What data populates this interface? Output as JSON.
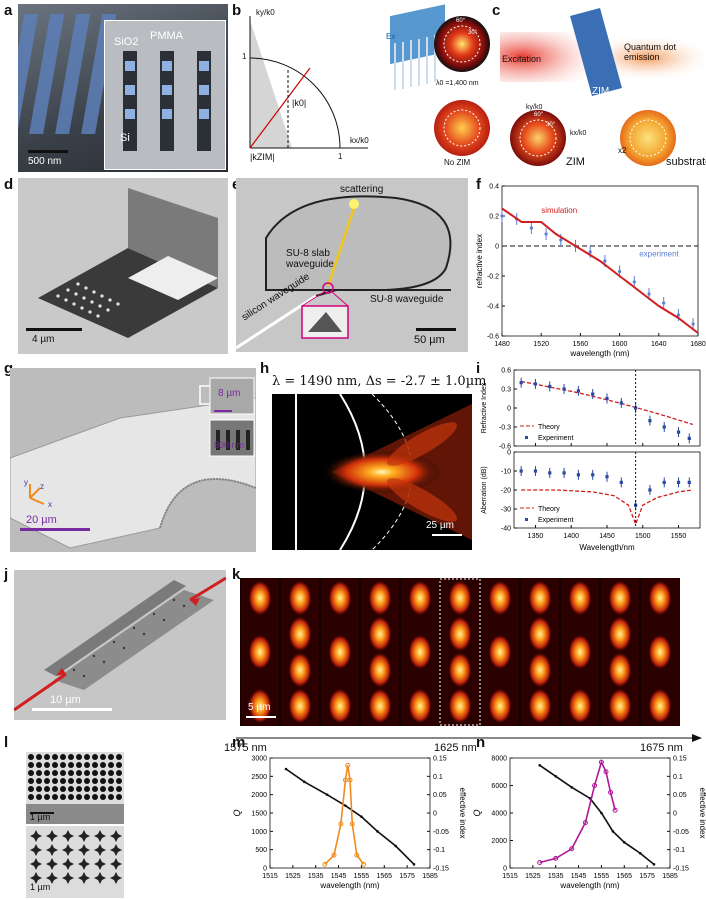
{
  "labels": {
    "a": "a",
    "b": "b",
    "c": "c",
    "d": "d",
    "e": "e",
    "f": "f",
    "g": "g",
    "h": "h",
    "i": "i",
    "j": "j",
    "k": "k",
    "l": "l",
    "m": "m",
    "n": "n"
  },
  "panel_a": {
    "sio2": "SiO2",
    "pmma": "PMMA",
    "si": "Si",
    "scale": "500 nm"
  },
  "panel_b": {
    "ky": "ky/k0",
    "kx": "kx/k0",
    "k0": "|k0|",
    "kzim": "|kZIM|",
    "one_y": "1",
    "one_x": "1",
    "lambda": "λ0 =1,400 nm",
    "no_zim": "No ZIM",
    "ex": "Ex",
    "deg60": "60°",
    "deg30": "30°"
  },
  "panel_c": {
    "excitation": "Excitation",
    "qd": "Quantum dot emission",
    "zim": "ZIM",
    "zim_label": "ZIM",
    "substrate": "substrate",
    "x2": "x2",
    "ky": "ky/k0",
    "kx": "kx/k0",
    "deg60": "60°",
    "deg30": "30°"
  },
  "panel_d": {
    "scale": "4 µm"
  },
  "panel_e": {
    "scattering": "scattering",
    "slab": "SU-8 slab waveguide",
    "su8": "SU-8 waveguide",
    "silicon": "silicon waveguide",
    "scale": "50 µm"
  },
  "panel_f": {
    "xlabel": "wavelength (nm)",
    "ylabel": "refractive index",
    "simulation": "simulation",
    "experiment": "experiment"
  },
  "panel_g": {
    "s8": "8 µm",
    "s800": "800 nm",
    "s20": "20 µm",
    "y": "y",
    "z": "z",
    "x": "x"
  },
  "panel_h": {
    "title": "λ = 1490 nm, Δs = -2.7 ± 1.0µm",
    "scale": "25 µm"
  },
  "panel_i": {
    "xlabel": "Wavelength/nm",
    "ylabel_top": "Refractive Index",
    "ylabel_bot": "Aberration (dB)",
    "theory": "Theory",
    "experiment": "Experiment"
  },
  "panel_j": {
    "scale": "10 µm"
  },
  "panel_k": {
    "scale": "5 µm",
    "w1": "1575 nm",
    "w2": "1625 nm",
    "w3": "1675 nm"
  },
  "panel_l": {
    "scale1": "1 µm",
    "scale2": "1 µm"
  },
  "panel_m": {
    "xlabel": "wavelength (nm)",
    "ylabel": "Q",
    "ylabel2": "effective index"
  },
  "panel_n": {
    "xlabel": "wavelength (nm)",
    "ylabel": "Q",
    "ylabel2": "effective index"
  },
  "chart_data": [
    {
      "id": "f",
      "type": "line",
      "title": "",
      "xlabel": "wavelength (nm)",
      "ylabel": "refractive index",
      "xlim": [
        1480,
        1680
      ],
      "ylim": [
        -0.6,
        0.4
      ],
      "xticks": [
        1480,
        1520,
        1560,
        1600,
        1640,
        1680
      ],
      "yticks": [
        0.4,
        0.2,
        0,
        -0.2,
        -0.4,
        -0.6
      ],
      "series": [
        {
          "name": "simulation",
          "x": [
            1480,
            1500,
            1520,
            1535,
            1550,
            1565,
            1580,
            1600,
            1620,
            1640,
            1660,
            1680
          ],
          "values": [
            0.25,
            0.16,
            0.16,
            0.08,
            0.02,
            -0.04,
            -0.1,
            -0.2,
            -0.3,
            -0.4,
            -0.48,
            -0.58
          ]
        },
        {
          "name": "experiment",
          "x": [
            1480,
            1495,
            1510,
            1525,
            1540,
            1555,
            1570,
            1585,
            1600,
            1615,
            1630,
            1645,
            1660,
            1675
          ],
          "values": [
            0.2,
            0.18,
            0.12,
            0.08,
            0.04,
            0.0,
            -0.04,
            -0.1,
            -0.17,
            -0.24,
            -0.32,
            -0.38,
            -0.46,
            -0.52
          ]
        }
      ]
    },
    {
      "id": "i-top",
      "type": "line",
      "xlabel": "Wavelength/nm",
      "ylabel": "Refractive Index",
      "xlim": [
        1320,
        1580
      ],
      "ylim": [
        -0.6,
        0.6
      ],
      "xticks": [
        1350,
        1400,
        1450,
        1500,
        1550
      ],
      "yticks": [
        0.6,
        0.3,
        0,
        -0.3,
        -0.6
      ],
      "series": [
        {
          "name": "Theory",
          "x": [
            1330,
            1370,
            1410,
            1450,
            1490,
            1530,
            1570
          ],
          "values": [
            0.42,
            0.33,
            0.24,
            0.13,
            0.01,
            -0.12,
            -0.26
          ]
        },
        {
          "name": "Experiment",
          "x": [
            1330,
            1350,
            1370,
            1390,
            1410,
            1430,
            1450,
            1470,
            1490,
            1510,
            1530,
            1550,
            1565
          ],
          "values": [
            0.4,
            0.38,
            0.34,
            0.3,
            0.27,
            0.22,
            0.15,
            0.08,
            0.0,
            -0.2,
            -0.3,
            -0.38,
            -0.48
          ]
        }
      ]
    },
    {
      "id": "i-bot",
      "type": "line",
      "xlabel": "Wavelength/nm",
      "ylabel": "Aberration (dB)",
      "xlim": [
        1320,
        1580
      ],
      "ylim": [
        -40,
        0
      ],
      "xticks": [
        1350,
        1400,
        1450,
        1500,
        1550
      ],
      "yticks": [
        0,
        -10,
        -20,
        -30,
        -40
      ],
      "series": [
        {
          "name": "Theory",
          "x": [
            1330,
            1380,
            1430,
            1460,
            1480,
            1490,
            1500,
            1520,
            1550,
            1570
          ],
          "values": [
            -20,
            -20,
            -21,
            -23,
            -28,
            -38,
            -28,
            -24,
            -21,
            -20
          ]
        },
        {
          "name": "Experiment",
          "x": [
            1330,
            1350,
            1370,
            1390,
            1410,
            1430,
            1450,
            1470,
            1490,
            1510,
            1530,
            1550,
            1565
          ],
          "values": [
            -10,
            -10,
            -11,
            -11,
            -12,
            -12,
            -13,
            -16,
            -28,
            -20,
            -16,
            -16,
            -16
          ]
        }
      ]
    },
    {
      "id": "m",
      "type": "line",
      "xlabel": "wavelength (nm)",
      "ylabel": "Q",
      "ylabel2": "effective index",
      "xlim": [
        1515,
        1585
      ],
      "ylim": [
        0,
        3000
      ],
      "ylim2": [
        -0.15,
        0.15
      ],
      "xticks": [
        1515,
        1525,
        1535,
        1545,
        1555,
        1565,
        1575,
        1585
      ],
      "yticks": [
        0,
        500,
        1000,
        1500,
        2000,
        2500,
        3000
      ],
      "yticks2": [
        0.15,
        0.1,
        0.05,
        0,
        -0.05,
        -0.1,
        -0.15
      ],
      "series": [
        {
          "name": "Q",
          "x": [
            1539,
            1543,
            1546,
            1548,
            1549,
            1550,
            1551,
            1553,
            1556
          ],
          "values": [
            100,
            350,
            1200,
            2400,
            2800,
            2400,
            1200,
            350,
            100
          ]
        },
        {
          "name": "effective index",
          "axis": "right",
          "x": [
            1522,
            1530,
            1540,
            1548,
            1555,
            1562,
            1570,
            1578
          ],
          "values": [
            0.12,
            0.085,
            0.05,
            0.02,
            -0.01,
            -0.05,
            -0.09,
            -0.14
          ]
        }
      ]
    },
    {
      "id": "n",
      "type": "line",
      "xlabel": "wavelength (nm)",
      "ylabel": "Q",
      "ylabel2": "effective index",
      "xlim": [
        1515,
        1585
      ],
      "ylim": [
        0,
        8000
      ],
      "ylim2": [
        -0.15,
        0.15
      ],
      "xticks": [
        1515,
        1525,
        1535,
        1545,
        1555,
        1565,
        1575,
        1585
      ],
      "yticks": [
        0,
        2000,
        4000,
        6000,
        8000
      ],
      "yticks2": [
        0.15,
        0.1,
        0.05,
        0,
        -0.05,
        -0.1,
        -0.15
      ],
      "series": [
        {
          "name": "Q",
          "x": [
            1528,
            1535,
            1542,
            1548,
            1552,
            1555,
            1557,
            1559,
            1561
          ],
          "values": [
            400,
            700,
            1400,
            3300,
            6000,
            7700,
            7000,
            5500,
            4200
          ]
        },
        {
          "name": "effective index",
          "axis": "right",
          "x": [
            1528,
            1535,
            1542,
            1550,
            1555,
            1560,
            1565,
            1572,
            1578
          ],
          "values": [
            0.13,
            0.1,
            0.07,
            0.04,
            0.0,
            -0.05,
            -0.08,
            -0.11,
            -0.14
          ]
        }
      ]
    }
  ]
}
